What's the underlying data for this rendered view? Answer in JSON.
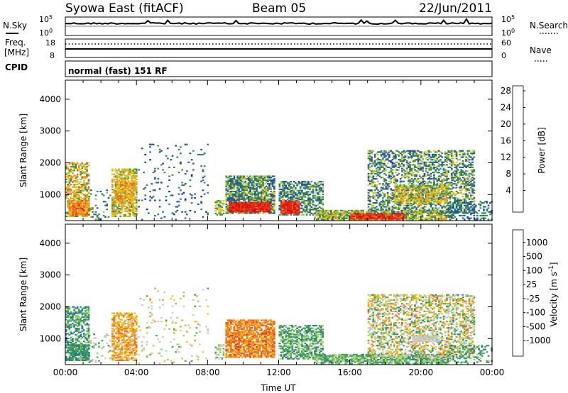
{
  "header": {
    "title": "Syowa East (fitACF)",
    "beam": "Beam 05",
    "date": "22/Jun/2011"
  },
  "strips": {
    "nsky_label": "N.Sky",
    "nsky_max": "10^5",
    "nsky_min": "10^0",
    "nsearch_label": "N.Search",
    "nsearch_max": "10^5",
    "nsearch_min": "10^0",
    "freq_label": "Freq.",
    "freq_unit": "[MHz]",
    "freq_max": "18",
    "freq_min": "8",
    "nave_label": "Nave",
    "nave_max": "60",
    "nave_min": "0",
    "cpid_label": "CPID",
    "cpid_text": "normal (fast) 151 RF"
  },
  "chart_data": [
    {
      "type": "heatmap",
      "title": "",
      "xlabel": "Time UT",
      "ylabel": "Slant Range [km]",
      "x_ticks": [
        "00:00",
        "04:00",
        "08:00",
        "12:00",
        "16:00",
        "20:00",
        "00:00"
      ],
      "x_range_hours": [
        0,
        24
      ],
      "y_ticks": [
        1000,
        2000,
        3000,
        4000
      ],
      "y_range_km": [
        180,
        4600
      ],
      "colorbar": {
        "label": "Power [dB]",
        "ticks": [
          "4",
          "8",
          "12",
          "16",
          "20",
          "24",
          "28"
        ],
        "colors": [
          "#0b24f2",
          "#1f4fb6",
          "#2f7a6b",
          "#3f8f4c",
          "#a8c23a",
          "#f2c316",
          "#f09a23",
          "#ee6b1f",
          "#e53a17",
          "#e10b0b"
        ]
      },
      "regions": [
        {
          "t0": 0.0,
          "t1": 1.3,
          "r0": 300,
          "r1": 2000,
          "density": 0.55,
          "level": [
            0.3,
            0.75
          ]
        },
        {
          "t0": 0.2,
          "t1": 1.3,
          "r0": 350,
          "r1": 800,
          "density": 0.8,
          "level": [
            0.55,
            0.85
          ]
        },
        {
          "t0": 1.3,
          "t1": 2.5,
          "r0": 200,
          "r1": 1200,
          "density": 0.12,
          "level": [
            0.1,
            0.5
          ]
        },
        {
          "t0": 2.6,
          "t1": 4.0,
          "r0": 300,
          "r1": 1800,
          "density": 0.65,
          "level": [
            0.3,
            0.7
          ]
        },
        {
          "t0": 2.8,
          "t1": 3.8,
          "r0": 700,
          "r1": 1400,
          "density": 0.7,
          "level": [
            0.45,
            0.8
          ]
        },
        {
          "t0": 4.0,
          "t1": 8.0,
          "r0": 200,
          "r1": 2600,
          "density": 0.05,
          "level": [
            0.05,
            0.4
          ]
        },
        {
          "t0": 8.4,
          "t1": 8.9,
          "r0": 350,
          "r1": 800,
          "density": 0.5,
          "level": [
            0.3,
            0.6
          ]
        },
        {
          "t0": 9.0,
          "t1": 11.7,
          "r0": 400,
          "r1": 1600,
          "density": 0.75,
          "level": [
            0.1,
            0.55
          ]
        },
        {
          "t0": 9.2,
          "t1": 11.5,
          "r0": 450,
          "r1": 750,
          "density": 0.95,
          "level": [
            0.8,
            1.0
          ]
        },
        {
          "t0": 12.0,
          "t1": 14.5,
          "r0": 350,
          "r1": 1400,
          "density": 0.6,
          "level": [
            0.1,
            0.5
          ]
        },
        {
          "t0": 12.1,
          "t1": 13.1,
          "r0": 400,
          "r1": 800,
          "density": 0.95,
          "level": [
            0.75,
            1.0
          ]
        },
        {
          "t0": 14.0,
          "t1": 21.5,
          "r0": 200,
          "r1": 500,
          "density": 0.75,
          "level": [
            0.25,
            0.65
          ]
        },
        {
          "t0": 16.0,
          "t1": 19.0,
          "r0": 220,
          "r1": 420,
          "density": 0.9,
          "level": [
            0.75,
            1.0
          ]
        },
        {
          "t0": 17.0,
          "t1": 23.0,
          "r0": 400,
          "r1": 2400,
          "density": 0.45,
          "level": [
            0.1,
            0.55
          ]
        },
        {
          "t0": 18.5,
          "t1": 21.5,
          "r0": 700,
          "r1": 1300,
          "density": 0.6,
          "level": [
            0.3,
            0.7
          ]
        },
        {
          "t0": 21.5,
          "t1": 24.0,
          "r0": 200,
          "r1": 800,
          "density": 0.3,
          "level": [
            0.1,
            0.4
          ]
        }
      ]
    },
    {
      "type": "heatmap",
      "title": "",
      "xlabel": "Time UT",
      "ylabel": "Slant Range [km]",
      "x_ticks": [
        "00:00",
        "04:00",
        "08:00",
        "12:00",
        "16:00",
        "20:00",
        "00:00"
      ],
      "x_range_hours": [
        0,
        24
      ],
      "y_ticks": [
        1000,
        2000,
        3000,
        4000
      ],
      "y_range_km": [
        180,
        4600
      ],
      "colorbar": {
        "label": "Velocity [m s^-1]",
        "ticks": [
          "1000",
          "500",
          "100",
          "25",
          "-25",
          "-100",
          "-500",
          "-1000"
        ],
        "colors": [
          "#2233c9",
          "#2f6ca8",
          "#2e8a6e",
          "#4aa35a",
          "#8ed35a",
          "#c8c8c8",
          "#c8c8c8",
          "#f2c316",
          "#f09a23",
          "#ee6b1f",
          "#e53a17",
          "#e10b0b"
        ]
      },
      "regions": [
        {
          "t0": 0.0,
          "t1": 1.3,
          "r0": 300,
          "r1": 2000,
          "density": 0.55,
          "level": [
            0.1,
            0.4
          ]
        },
        {
          "t0": 0.2,
          "t1": 1.3,
          "r0": 300,
          "r1": 800,
          "density": 0.8,
          "level": [
            0.15,
            0.35
          ]
        },
        {
          "t0": 1.3,
          "t1": 2.5,
          "r0": 200,
          "r1": 1200,
          "density": 0.12,
          "level": [
            0.2,
            0.6
          ]
        },
        {
          "t0": 2.6,
          "t1": 4.0,
          "r0": 300,
          "r1": 1800,
          "density": 0.65,
          "level": [
            0.55,
            0.8
          ]
        },
        {
          "t0": 4.0,
          "t1": 8.0,
          "r0": 200,
          "r1": 2600,
          "density": 0.05,
          "level": [
            0.3,
            0.7
          ]
        },
        {
          "t0": 8.4,
          "t1": 8.9,
          "r0": 350,
          "r1": 800,
          "density": 0.5,
          "level": [
            0.3,
            0.5
          ]
        },
        {
          "t0": 9.0,
          "t1": 11.7,
          "r0": 400,
          "r1": 1600,
          "density": 0.75,
          "level": [
            0.65,
            0.85
          ]
        },
        {
          "t0": 12.0,
          "t1": 14.5,
          "r0": 350,
          "r1": 1400,
          "density": 0.6,
          "level": [
            0.15,
            0.45
          ]
        },
        {
          "t0": 14.0,
          "t1": 21.5,
          "r0": 200,
          "r1": 500,
          "density": 0.75,
          "level": [
            0.2,
            0.45
          ]
        },
        {
          "t0": 17.0,
          "t1": 23.0,
          "r0": 400,
          "r1": 2400,
          "density": 0.45,
          "level": [
            0.2,
            0.8
          ]
        },
        {
          "t0": 19.5,
          "t1": 21.0,
          "r0": 900,
          "r1": 1100,
          "density": 0.7,
          "level": [
            0.48,
            0.55
          ]
        },
        {
          "t0": 21.5,
          "t1": 24.0,
          "r0": 200,
          "r1": 800,
          "density": 0.3,
          "level": [
            0.15,
            0.4
          ]
        }
      ]
    }
  ]
}
